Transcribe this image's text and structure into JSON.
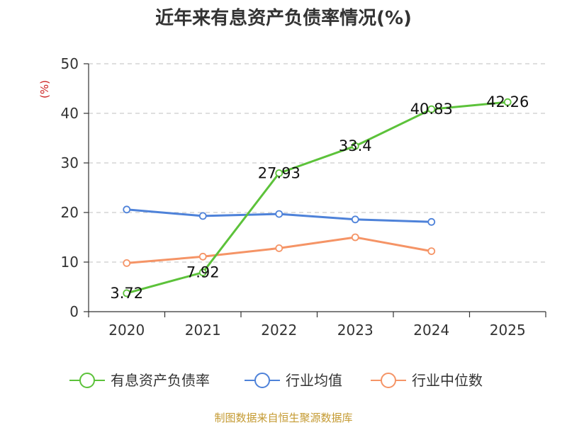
{
  "chart_data": {
    "type": "line",
    "title": "近年来有息资产负债率情况(%)",
    "ylabel": "(%)",
    "xlabel": "",
    "categories": [
      "2020",
      "2021",
      "2022",
      "2023",
      "2024",
      "2025"
    ],
    "ylim": [
      0,
      50
    ],
    "yticks": [
      0,
      10,
      20,
      30,
      40,
      50
    ],
    "grid": true,
    "legend_position": "bottom",
    "series": [
      {
        "name": "有息资产负债率",
        "color": "#5cc23a",
        "values": [
          3.72,
          7.92,
          27.93,
          33.4,
          40.83,
          42.26
        ],
        "labels": [
          "3.72",
          "7.92",
          "27.93",
          "33.4",
          "40.83",
          "42.26"
        ]
      },
      {
        "name": "行业均值",
        "color": "#4e82d9",
        "values": [
          20.6,
          19.3,
          19.7,
          18.6,
          18.1,
          null
        ],
        "labels": []
      },
      {
        "name": "行业中位数",
        "color": "#f59466",
        "values": [
          9.8,
          11.1,
          12.8,
          15.0,
          12.2,
          null
        ],
        "labels": []
      }
    ]
  },
  "colors": {
    "unit_label": "#cc2222",
    "source_text": "#c49a32",
    "axis": "#333333",
    "grid": "#cccccc"
  },
  "source": "制图数据来自恒生聚源数据库"
}
